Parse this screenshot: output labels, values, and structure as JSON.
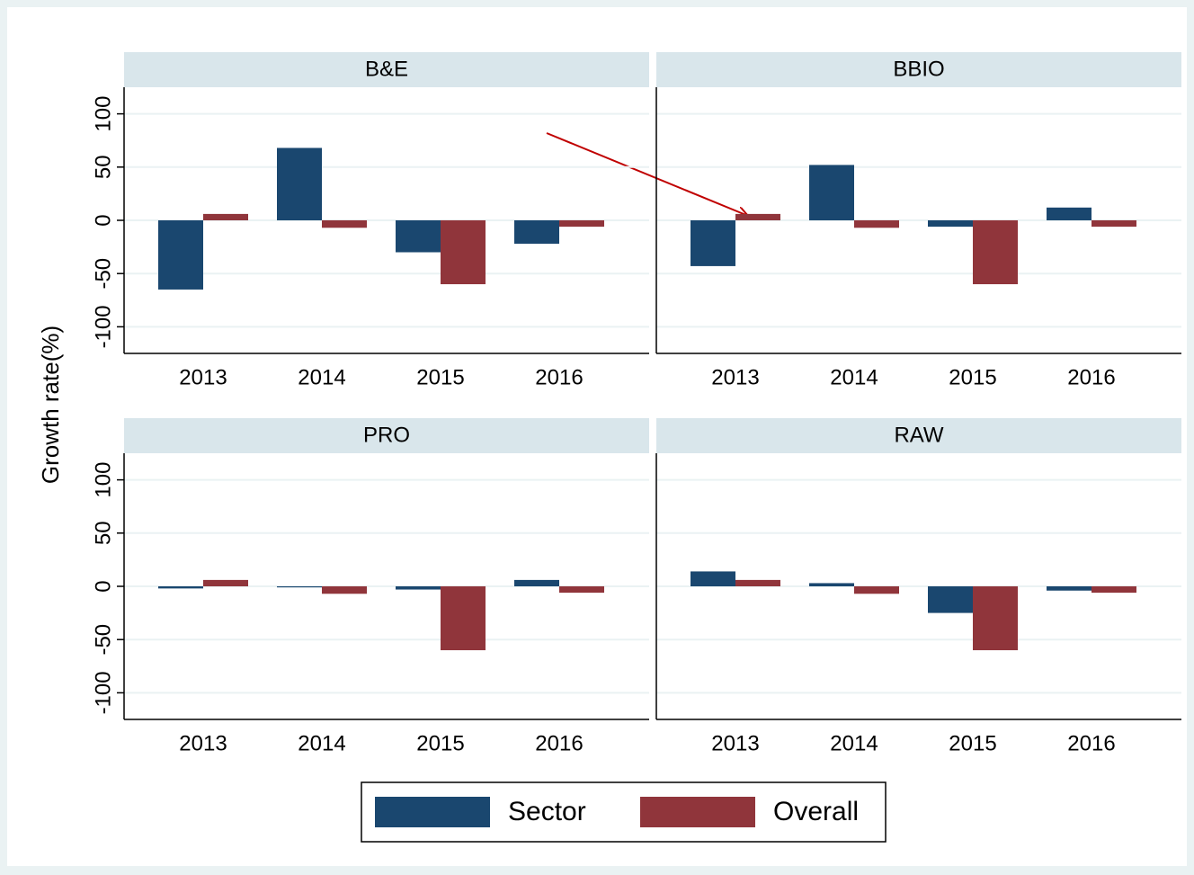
{
  "y_label": "Growth rate(%)",
  "chart_data": [
    {
      "type": "bar",
      "title": "B&E",
      "categories": [
        "2013",
        "2014",
        "2015",
        "2016"
      ],
      "series": [
        {
          "name": "Sector",
          "color": "#1a476f",
          "values": [
            -65,
            68,
            -30,
            -22
          ]
        },
        {
          "name": "Overall",
          "color": "#90353b",
          "values": [
            6,
            -7,
            -60,
            -6
          ]
        }
      ],
      "ylim": [
        -125,
        125
      ],
      "yticks": [
        -100,
        -50,
        0,
        50,
        100
      ],
      "grid": true
    },
    {
      "type": "bar",
      "title": "BBIO",
      "categories": [
        "2013",
        "2014",
        "2015",
        "2016"
      ],
      "series": [
        {
          "name": "Sector",
          "color": "#1a476f",
          "values": [
            -43,
            52,
            -6,
            12
          ]
        },
        {
          "name": "Overall",
          "color": "#90353b",
          "values": [
            6,
            -7,
            -60,
            -6
          ]
        }
      ],
      "ylim": [
        -125,
        125
      ],
      "yticks": [
        -100,
        -50,
        0,
        50,
        100
      ],
      "grid": true
    },
    {
      "type": "bar",
      "title": "PRO",
      "categories": [
        "2013",
        "2014",
        "2015",
        "2016"
      ],
      "series": [
        {
          "name": "Sector",
          "color": "#1a476f",
          "values": [
            -2,
            -1,
            -3,
            6
          ]
        },
        {
          "name": "Overall",
          "color": "#90353b",
          "values": [
            6,
            -7,
            -60,
            -6
          ]
        }
      ],
      "ylim": [
        -125,
        125
      ],
      "yticks": [
        -100,
        -50,
        0,
        50,
        100
      ],
      "grid": true
    },
    {
      "type": "bar",
      "title": "RAW",
      "categories": [
        "2013",
        "2014",
        "2015",
        "2016"
      ],
      "series": [
        {
          "name": "Sector",
          "color": "#1a476f",
          "values": [
            14,
            3,
            -25,
            -4
          ]
        },
        {
          "name": "Overall",
          "color": "#90353b",
          "values": [
            6,
            -7,
            -60,
            -6
          ]
        }
      ],
      "ylim": [
        -125,
        125
      ],
      "yticks": [
        -100,
        -50,
        0,
        50,
        100
      ],
      "grid": true
    }
  ]
}
